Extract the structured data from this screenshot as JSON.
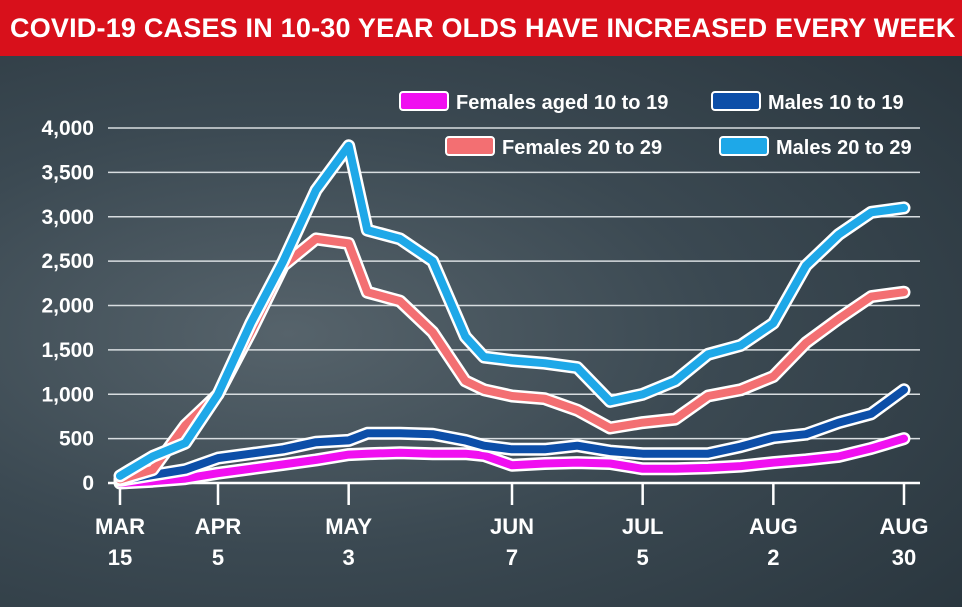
{
  "title": "COVID-19 CASES IN 10-30 YEAR OLDS HAVE INCREASED EVERY WEEK",
  "chart_data": {
    "type": "line",
    "title": "COVID-19 CASES IN 10-30 YEAR OLDS HAVE INCREASED EVERY WEEK",
    "xlabel": "",
    "ylabel": "",
    "ylim": [
      0,
      4000
    ],
    "yticks": [
      0,
      500,
      1000,
      1500,
      2000,
      2500,
      3000,
      3500,
      4000
    ],
    "ytick_labels": [
      "0",
      "500",
      "1,000",
      "1,500",
      "2,000",
      "2,500",
      "3,000",
      "3,500",
      "4,000"
    ],
    "grid": true,
    "legend_position": "top-right",
    "x_start": "2020-03-15",
    "x_end": "2020-08-30",
    "x_ticks": [
      {
        "date": "2020-03-15",
        "line1": "MAR",
        "line2": "15"
      },
      {
        "date": "2020-04-05",
        "line1": "APR",
        "line2": "5"
      },
      {
        "date": "2020-05-03",
        "line1": "MAY",
        "line2": "3"
      },
      {
        "date": "2020-06-07",
        "line1": "JUN",
        "line2": "7"
      },
      {
        "date": "2020-07-05",
        "line1": "JUL",
        "line2": "5"
      },
      {
        "date": "2020-08-02",
        "line1": "AUG",
        "line2": "2"
      },
      {
        "date": "2020-08-30",
        "line1": "AUG",
        "line2": "30"
      }
    ],
    "series": [
      {
        "name": "Females aged 10 to 19",
        "color": "#f00ff0",
        "points": [
          [
            "2020-03-15",
            0
          ],
          [
            "2020-03-22",
            20
          ],
          [
            "2020-03-29",
            50
          ],
          [
            "2020-04-05",
            110
          ],
          [
            "2020-04-12",
            160
          ],
          [
            "2020-04-19",
            210
          ],
          [
            "2020-04-26",
            260
          ],
          [
            "2020-05-03",
            320
          ],
          [
            "2020-05-07",
            330
          ],
          [
            "2020-05-14",
            340
          ],
          [
            "2020-05-21",
            330
          ],
          [
            "2020-05-28",
            330
          ],
          [
            "2020-06-01",
            310
          ],
          [
            "2020-06-07",
            200
          ],
          [
            "2020-06-14",
            220
          ],
          [
            "2020-06-21",
            230
          ],
          [
            "2020-06-28",
            220
          ],
          [
            "2020-07-05",
            160
          ],
          [
            "2020-07-12",
            160
          ],
          [
            "2020-07-19",
            170
          ],
          [
            "2020-07-26",
            190
          ],
          [
            "2020-08-02",
            230
          ],
          [
            "2020-08-09",
            260
          ],
          [
            "2020-08-16",
            300
          ],
          [
            "2020-08-23",
            390
          ],
          [
            "2020-08-30",
            500
          ]
        ]
      },
      {
        "name": "Males 10 to 19",
        "color": "#0c4ea8",
        "points": [
          [
            "2020-03-15",
            30
          ],
          [
            "2020-03-22",
            90
          ],
          [
            "2020-03-29",
            150
          ],
          [
            "2020-04-05",
            280
          ],
          [
            "2020-04-12",
            330
          ],
          [
            "2020-04-19",
            380
          ],
          [
            "2020-04-26",
            460
          ],
          [
            "2020-05-03",
            480
          ],
          [
            "2020-05-07",
            560
          ],
          [
            "2020-05-14",
            560
          ],
          [
            "2020-05-21",
            550
          ],
          [
            "2020-05-28",
            480
          ],
          [
            "2020-06-01",
            420
          ],
          [
            "2020-06-07",
            380
          ],
          [
            "2020-06-14",
            380
          ],
          [
            "2020-06-21",
            420
          ],
          [
            "2020-06-28",
            360
          ],
          [
            "2020-07-05",
            330
          ],
          [
            "2020-07-12",
            330
          ],
          [
            "2020-07-19",
            330
          ],
          [
            "2020-07-26",
            410
          ],
          [
            "2020-08-02",
            510
          ],
          [
            "2020-08-09",
            550
          ],
          [
            "2020-08-16",
            680
          ],
          [
            "2020-08-23",
            780
          ],
          [
            "2020-08-30",
            1050
          ]
        ]
      },
      {
        "name": "Females 20 to 29",
        "color": "#f36f72",
        "points": [
          [
            "2020-03-15",
            40
          ],
          [
            "2020-03-22",
            150
          ],
          [
            "2020-03-29",
            650
          ],
          [
            "2020-04-05",
            1000
          ],
          [
            "2020-04-12",
            1700
          ],
          [
            "2020-04-19",
            2450
          ],
          [
            "2020-04-26",
            2750
          ],
          [
            "2020-05-03",
            2700
          ],
          [
            "2020-05-07",
            2150
          ],
          [
            "2020-05-14",
            2050
          ],
          [
            "2020-05-21",
            1700
          ],
          [
            "2020-05-28",
            1150
          ],
          [
            "2020-06-01",
            1050
          ],
          [
            "2020-06-07",
            980
          ],
          [
            "2020-06-14",
            950
          ],
          [
            "2020-06-21",
            820
          ],
          [
            "2020-06-28",
            620
          ],
          [
            "2020-07-05",
            680
          ],
          [
            "2020-07-12",
            720
          ],
          [
            "2020-07-19",
            980
          ],
          [
            "2020-07-26",
            1050
          ],
          [
            "2020-08-02",
            1200
          ],
          [
            "2020-08-09",
            1580
          ],
          [
            "2020-08-16",
            1850
          ],
          [
            "2020-08-23",
            2100
          ],
          [
            "2020-08-30",
            2150
          ]
        ]
      },
      {
        "name": "Males 20 to 29",
        "color": "#1ea8e8",
        "points": [
          [
            "2020-03-15",
            80
          ],
          [
            "2020-03-22",
            300
          ],
          [
            "2020-03-29",
            450
          ],
          [
            "2020-04-05",
            1000
          ],
          [
            "2020-04-12",
            1800
          ],
          [
            "2020-04-19",
            2500
          ],
          [
            "2020-04-26",
            3300
          ],
          [
            "2020-05-03",
            3800
          ],
          [
            "2020-05-07",
            2850
          ],
          [
            "2020-05-14",
            2750
          ],
          [
            "2020-05-21",
            2500
          ],
          [
            "2020-05-28",
            1650
          ],
          [
            "2020-06-01",
            1420
          ],
          [
            "2020-06-07",
            1380
          ],
          [
            "2020-06-14",
            1350
          ],
          [
            "2020-06-21",
            1300
          ],
          [
            "2020-06-28",
            920
          ],
          [
            "2020-07-05",
            1000
          ],
          [
            "2020-07-12",
            1150
          ],
          [
            "2020-07-19",
            1450
          ],
          [
            "2020-07-26",
            1550
          ],
          [
            "2020-08-02",
            1800
          ],
          [
            "2020-08-09",
            2450
          ],
          [
            "2020-08-16",
            2800
          ],
          [
            "2020-08-23",
            3050
          ],
          [
            "2020-08-30",
            3100
          ]
        ]
      }
    ],
    "legend_order": [
      0,
      1,
      2,
      3
    ]
  }
}
